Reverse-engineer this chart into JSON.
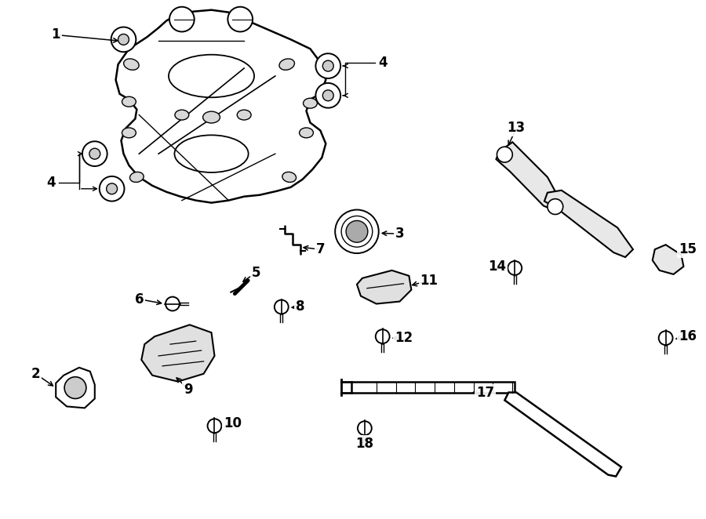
{
  "bg": "#ffffff",
  "lc": "#000000",
  "fw": 9.0,
  "fh": 6.62,
  "dpi": 100
}
